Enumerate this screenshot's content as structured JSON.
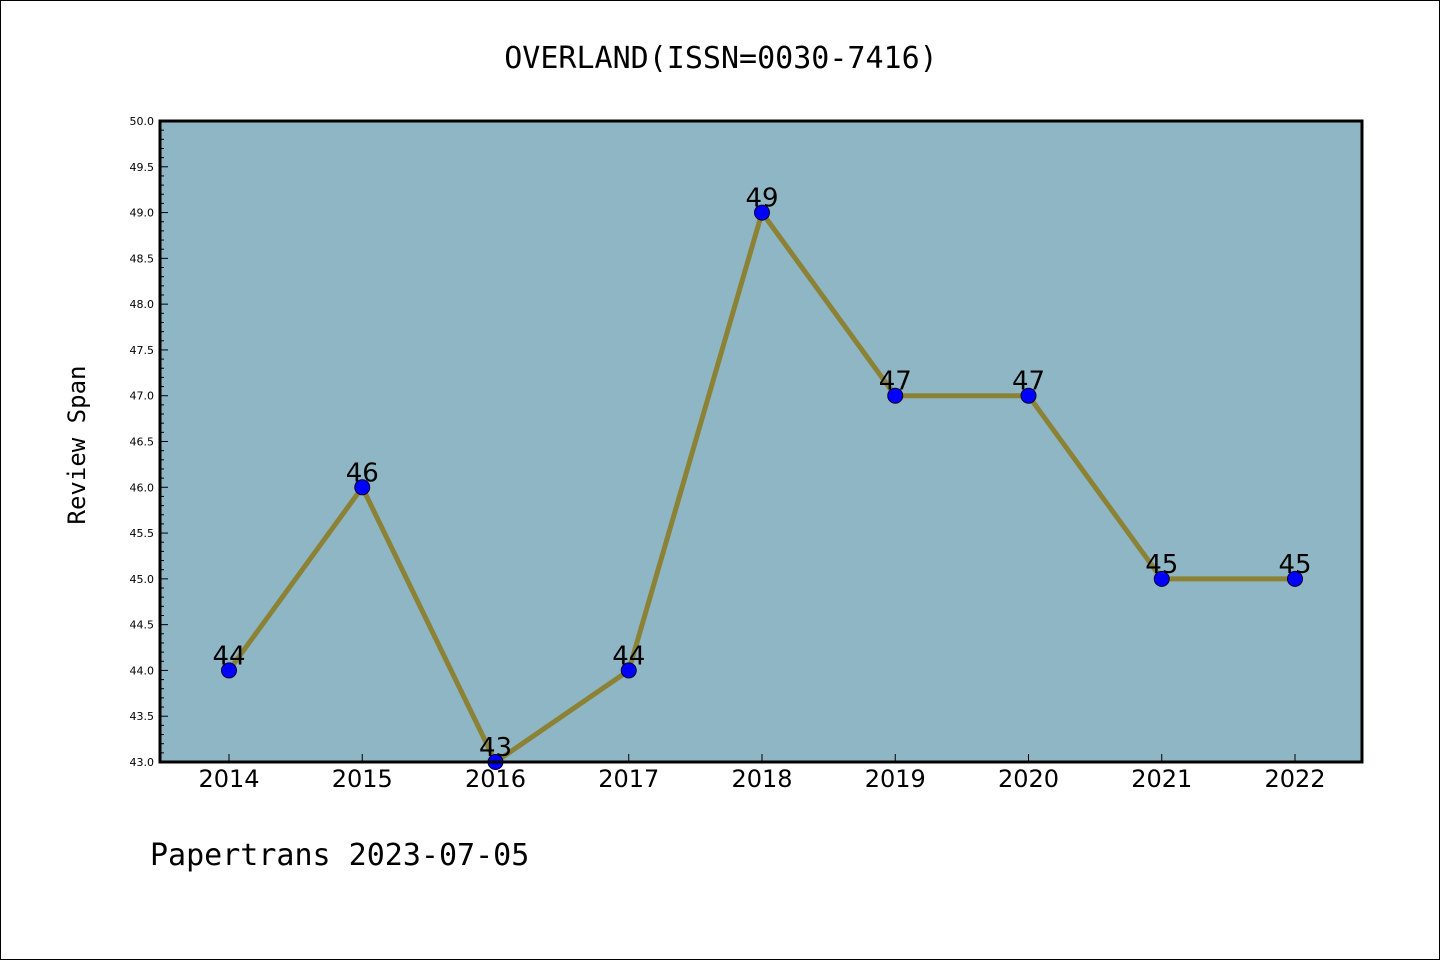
{
  "colors": {
    "plot_background": "#8fb6c4",
    "line": "#8b8236",
    "marker": "#0000ff",
    "axis": "#000000"
  },
  "chart_data": {
    "type": "line",
    "title": "OVERLAND(ISSN=0030-7416)",
    "xlabel": "",
    "ylabel": "Review Span",
    "footer": "Papertrans 2023-07-05",
    "x": [
      "2014",
      "2015",
      "2016",
      "2017",
      "2018",
      "2019",
      "2020",
      "2021",
      "2022"
    ],
    "series": [
      {
        "values": [
          44,
          46,
          43,
          44,
          49,
          47,
          47,
          45,
          45
        ],
        "data_labels": [
          "44",
          "46",
          "43",
          "44",
          "49",
          "47",
          "47",
          "45",
          "45"
        ],
        "marker": "circle"
      }
    ],
    "ylim": [
      43.0,
      50.0
    ],
    "yticks": [
      "43.0",
      "43.5",
      "44.0",
      "44.5",
      "45.0",
      "45.5",
      "46.0",
      "46.5",
      "47.0",
      "47.5",
      "48.0",
      "48.5",
      "49.0",
      "49.5",
      "50.0"
    ],
    "grid": false,
    "legend": "none"
  }
}
